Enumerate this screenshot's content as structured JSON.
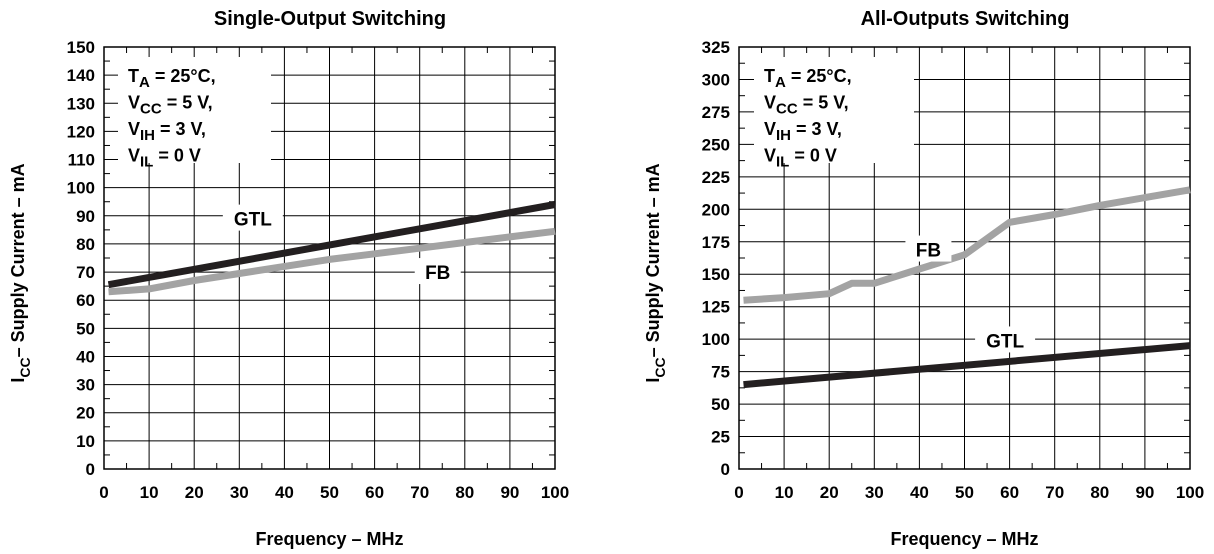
{
  "chart_data": [
    {
      "type": "line",
      "title": "Single-Output Switching",
      "xlabel": "Frequency – MHz",
      "ylabel": {
        "prefix": "I",
        "sub": "CC",
        "rest": "– Supply Current – mA"
      },
      "xlim": [
        0,
        100
      ],
      "ylim": [
        0,
        150
      ],
      "xticks": [
        0,
        10,
        20,
        30,
        40,
        50,
        60,
        70,
        80,
        90,
        100
      ],
      "yticks": [
        0,
        10,
        20,
        30,
        40,
        50,
        60,
        70,
        80,
        90,
        100,
        110,
        120,
        130,
        140,
        150
      ],
      "grid": true,
      "conditions": [
        {
          "main": "T",
          "sub": "A",
          "rest": " = 25°C,"
        },
        {
          "main": "V",
          "sub": "CC",
          "rest": " = 5 V,"
        },
        {
          "main": "V",
          "sub": "IH",
          "rest": " = 3 V,"
        },
        {
          "main": "V",
          "sub": "IL",
          "rest": " = 0 V"
        }
      ],
      "series": [
        {
          "name": "GTL",
          "color": "#231f20",
          "x": [
            1,
            100
          ],
          "y": [
            65.5,
            94
          ],
          "label_at": [
            33,
            89
          ]
        },
        {
          "name": "FB",
          "color": "#a3a3a3",
          "x": [
            1,
            10,
            20,
            30,
            40,
            50,
            60,
            70,
            80,
            90,
            100
          ],
          "y": [
            63,
            64,
            67,
            69.5,
            72,
            74.5,
            76.5,
            78.5,
            80.5,
            82.5,
            84.5
          ],
          "label_at": [
            74,
            70
          ]
        }
      ]
    },
    {
      "type": "line",
      "title": "All-Outputs Switching",
      "xlabel": "Frequency – MHz",
      "ylabel": {
        "prefix": "I",
        "sub": "CC",
        "rest": "– Supply Current – mA"
      },
      "xlim": [
        0,
        100
      ],
      "ylim": [
        0,
        325
      ],
      "xticks": [
        0,
        10,
        20,
        30,
        40,
        50,
        60,
        70,
        80,
        90,
        100
      ],
      "yticks": [
        0,
        25,
        50,
        75,
        100,
        125,
        150,
        175,
        200,
        225,
        250,
        275,
        300,
        325
      ],
      "grid": true,
      "conditions": [
        {
          "main": "T",
          "sub": "A",
          "rest": " = 25°C,"
        },
        {
          "main": "V",
          "sub": "CC",
          "rest": " = 5 V,"
        },
        {
          "main": "V",
          "sub": "IH",
          "rest": " = 3 V,"
        },
        {
          "main": "V",
          "sub": "IL",
          "rest": " = 0 V"
        }
      ],
      "series": [
        {
          "name": "FB",
          "color": "#a3a3a3",
          "x": [
            1,
            10,
            20,
            25,
            30,
            40,
            50,
            60,
            70,
            80,
            90,
            100
          ],
          "y": [
            130,
            132,
            135,
            143,
            143,
            154,
            165,
            190,
            196,
            203,
            209,
            215
          ],
          "label_at": [
            42,
            169
          ]
        },
        {
          "name": "GTL",
          "color": "#231f20",
          "x": [
            1,
            100
          ],
          "y": [
            65,
            95
          ],
          "label_at": [
            59,
            99
          ]
        }
      ]
    }
  ]
}
